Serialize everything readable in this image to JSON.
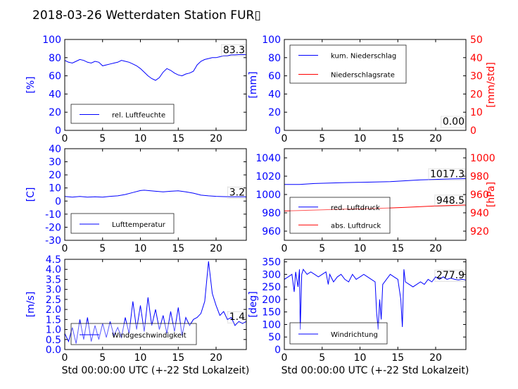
{
  "figure": {
    "title": "2018-03-26 Wetterdaten Station FUR▯"
  },
  "colors": {
    "blue": "#0000ff",
    "red": "#ff0000",
    "axis": "#000000"
  },
  "chart_data": [
    {
      "type": "line",
      "panel": "rel-luftfeuchte",
      "ylabel": "[%]",
      "xlabel": "",
      "xlim": [
        0,
        24
      ],
      "ylim": [
        0,
        100
      ],
      "xticks": [
        0,
        5,
        10,
        15,
        20
      ],
      "yticks": [
        0,
        20,
        40,
        60,
        80,
        100
      ],
      "value_label": "83.3",
      "legend_position": "lower-left",
      "series": [
        {
          "name": "rel. Luftfeuchte",
          "color": "#0000ff",
          "x": [
            0,
            0.5,
            1,
            1.5,
            2,
            2.5,
            3,
            3.5,
            4,
            4.5,
            5,
            5.5,
            6,
            6.5,
            7,
            7.5,
            8,
            8.5,
            9,
            9.5,
            10,
            10.5,
            11,
            11.5,
            12,
            12.5,
            13,
            13.5,
            14,
            14.5,
            15,
            15.5,
            16,
            16.5,
            17,
            17.5,
            18,
            18.5,
            19,
            19.5,
            20,
            20.5,
            21,
            21.5,
            22,
            22.5,
            23,
            23.5,
            24
          ],
          "y": [
            77,
            75,
            74,
            76,
            78,
            77,
            75,
            74,
            76,
            75,
            71,
            72,
            73,
            74,
            75,
            77,
            76,
            75,
            73,
            71,
            68,
            64,
            60,
            57,
            55,
            58,
            64,
            68,
            66,
            63,
            61,
            60,
            62,
            63,
            65,
            72,
            76,
            78,
            79,
            80,
            80,
            81,
            82,
            82,
            83,
            83,
            83.3,
            83.3,
            83.3
          ]
        }
      ]
    },
    {
      "type": "line",
      "panel": "niederschlag",
      "ylabel": "[mm]",
      "ylabel_right": "[mm/std]",
      "xlabel": "",
      "xlim": [
        0,
        24
      ],
      "ylim": [
        0,
        100
      ],
      "ylim_right": [
        0,
        50
      ],
      "xticks": [
        0,
        5,
        10,
        15,
        20
      ],
      "yticks": [
        0,
        20,
        40,
        60,
        80,
        100
      ],
      "yticks_right": [
        0,
        10,
        20,
        30,
        40,
        50
      ],
      "value_label": "0.00",
      "legend_position": "upper-left",
      "series": [
        {
          "name": "kum. Niederschlag",
          "color": "#0000ff",
          "axis": "left",
          "x": [
            0,
            24
          ],
          "y": [
            0,
            0
          ]
        },
        {
          "name": "Niederschlagsrate",
          "color": "#ff0000",
          "axis": "right",
          "x": [
            0,
            24
          ],
          "y": [
            0,
            0
          ]
        }
      ]
    },
    {
      "type": "line",
      "panel": "lufttemperatur",
      "ylabel": "[C]",
      "xlabel": "",
      "xlim": [
        0,
        24
      ],
      "ylim": [
        -30,
        40
      ],
      "xticks": [
        0,
        5,
        10,
        15,
        20
      ],
      "yticks": [
        -30,
        -20,
        -10,
        0,
        10,
        20,
        30,
        40
      ],
      "value_label": "3.2",
      "legend_position": "lower-left",
      "series": [
        {
          "name": "Lufttemperatur",
          "color": "#0000ff",
          "x": [
            0,
            1,
            2,
            3,
            4,
            5,
            6,
            7,
            8,
            9,
            10,
            10.5,
            11,
            12,
            13,
            14,
            15,
            16,
            17,
            18,
            19,
            20,
            21,
            22,
            23,
            24
          ],
          "y": [
            3.5,
            3,
            3.5,
            3,
            3.3,
            3,
            3.6,
            4,
            5,
            6.5,
            8,
            8.3,
            8,
            7.5,
            7,
            7.5,
            7.8,
            7,
            6,
            4.5,
            4,
            3.6,
            3.4,
            3.2,
            3.2,
            3.2
          ]
        }
      ]
    },
    {
      "type": "line",
      "panel": "luftdruck",
      "ylabel": "",
      "ylabel_right": "[hPa]",
      "xlabel": "",
      "xlim": [
        0,
        24
      ],
      "ylim": [
        950,
        1050
      ],
      "ylim_right": [
        910,
        1010
      ],
      "xticks": [
        0,
        5,
        10,
        15,
        20
      ],
      "yticks": [
        960,
        980,
        1000,
        1020,
        1040
      ],
      "yticks_right": [
        920,
        940,
        960,
        980,
        1000
      ],
      "value_labels": [
        "1017.3",
        "948.5"
      ],
      "legend_position": "lower-left",
      "series": [
        {
          "name": "red. Luftdruck",
          "color": "#0000ff",
          "axis": "left",
          "x": [
            0,
            2,
            4,
            6,
            8,
            10,
            12,
            14,
            16,
            18,
            20,
            22,
            24
          ],
          "y": [
            1011,
            1011,
            1012,
            1012.5,
            1013,
            1013.3,
            1013.6,
            1014,
            1015,
            1016,
            1016.5,
            1017,
            1017.3
          ]
        },
        {
          "name": "abs. Luftdruck",
          "color": "#ff0000",
          "axis": "right",
          "x": [
            0,
            2,
            4,
            6,
            8,
            10,
            12,
            14,
            16,
            18,
            20,
            22,
            24
          ],
          "y": [
            942,
            942.5,
            943,
            943.5,
            944,
            944.3,
            944.8,
            945.3,
            946,
            946.8,
            947.5,
            948,
            948.5
          ]
        }
      ]
    },
    {
      "type": "line",
      "panel": "windgeschwindigkeit",
      "ylabel": "[m/s]",
      "xlabel": "Std 00:00:00 UTC (+-22 Std Lokalzeit)",
      "xlim": [
        0,
        24
      ],
      "ylim": [
        0,
        4.5
      ],
      "xticks": [
        0,
        5,
        10,
        15,
        20
      ],
      "yticks": [
        0.0,
        0.5,
        1.0,
        1.5,
        2.0,
        2.5,
        3.0,
        3.5,
        4.0,
        4.5
      ],
      "value_label": "1.4",
      "legend_position": "lower-left",
      "series": [
        {
          "name": "Windgeschwindigkeit",
          "color": "#0000ff",
          "x": [
            0,
            0.5,
            1,
            1.5,
            2,
            2.5,
            3,
            3.5,
            4,
            4.5,
            5,
            5.5,
            6,
            6.5,
            7,
            7.5,
            8,
            8.5,
            9,
            9.5,
            10,
            10.5,
            11,
            11.5,
            12,
            12.5,
            13,
            13.5,
            14,
            14.5,
            15,
            15.5,
            16,
            16.5,
            17,
            17.5,
            18,
            18.5,
            19,
            19.5,
            20,
            20.5,
            21,
            21.5,
            22,
            22.5,
            23,
            23.5,
            24
          ],
          "y": [
            0.8,
            0.4,
            1.1,
            0.3,
            1.5,
            0.5,
            1.6,
            0.4,
            1.2,
            0.5,
            1.3,
            0.6,
            1.4,
            0.7,
            1.1,
            0.6,
            1.6,
            0.8,
            2.4,
            1.0,
            2.2,
            0.9,
            2.6,
            1.2,
            2.0,
            1.0,
            1.7,
            0.8,
            1.9,
            0.9,
            2.1,
            0.7,
            1.6,
            1.2,
            1.5,
            1.6,
            1.8,
            2.4,
            4.4,
            2.8,
            2.2,
            1.7,
            1.9,
            1.5,
            1.6,
            1.2,
            1.4,
            1.3,
            1.4
          ]
        }
      ]
    },
    {
      "type": "line",
      "panel": "windrichtung",
      "ylabel": "[deg]",
      "xlabel": "Std 00:00:00 UTC (+-22 Std Lokalzeit)",
      "xlim": [
        0,
        24
      ],
      "ylim": [
        0,
        360
      ],
      "xticks": [
        0,
        5,
        10,
        15,
        20
      ],
      "yticks": [
        0,
        50,
        100,
        150,
        200,
        250,
        300,
        350
      ],
      "value_label": "277.9",
      "legend_position": "lower-left",
      "series": [
        {
          "name": "Windrichtung",
          "color": "#0000ff",
          "x": [
            0,
            0.5,
            1,
            1.3,
            1.5,
            1.8,
            2,
            2.1,
            2.3,
            2.5,
            3,
            3.5,
            4,
            4.5,
            5,
            5.5,
            5.8,
            6,
            6.5,
            7,
            7.5,
            8,
            8.5,
            9,
            9.5,
            10,
            10.5,
            11,
            11.5,
            12,
            12.2,
            12.4,
            12.6,
            12.8,
            13,
            13.5,
            14,
            14.5,
            15,
            15.4,
            15.6,
            15.8,
            16,
            16.5,
            17,
            17.5,
            18,
            18.5,
            19,
            19.5,
            20,
            20.5,
            21,
            21.5,
            22,
            22.5,
            23,
            23.5,
            24
          ],
          "y": [
            280,
            290,
            300,
            230,
            310,
            250,
            320,
            80,
            300,
            320,
            300,
            310,
            300,
            290,
            300,
            310,
            260,
            300,
            270,
            290,
            300,
            280,
            270,
            300,
            280,
            290,
            300,
            290,
            280,
            270,
            150,
            80,
            200,
            120,
            260,
            280,
            300,
            290,
            280,
            200,
            90,
            320,
            270,
            260,
            250,
            260,
            270,
            260,
            280,
            270,
            290,
            280,
            290,
            280,
            285,
            280,
            278,
            280,
            277.9
          ]
        }
      ]
    }
  ]
}
